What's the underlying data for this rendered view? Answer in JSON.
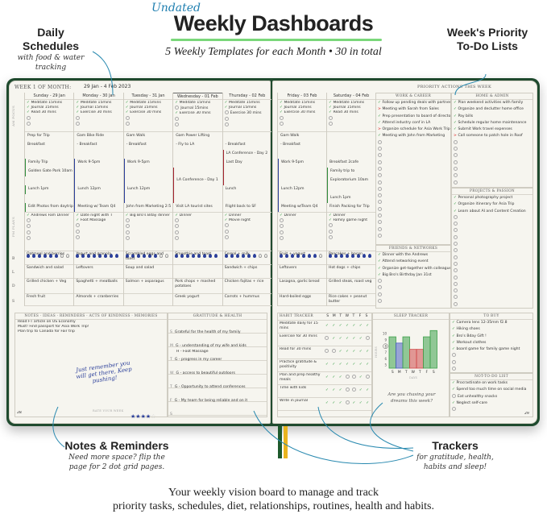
{
  "header": {
    "undated": "Undated",
    "title": "Weekly Dashboards",
    "subtitle": "5 Weekly Templates for each Month  •  30 in total"
  },
  "callouts": {
    "daily": {
      "title": "Daily Schedules",
      "sub": "with food & water tracking"
    },
    "priority": {
      "title": "Week's Priority To-Do Lists"
    },
    "notes": {
      "title": "Notes & Reminders",
      "sub": "Need more space? flip the page for 2 dot grid pages."
    },
    "trackers": {
      "title": "Trackers",
      "sub": "for gratitude, health, habits and sleep!"
    }
  },
  "tagline": [
    "Your weekly vision board to manage and track",
    "priority tasks, schedules, diet, relationships, routines, health and habits."
  ],
  "left_page": {
    "week_label": "WEEK 1 of MONTH:",
    "week_range": "29 Jan  -  4 Feb 2023",
    "page_number": "28",
    "row_labels": {
      "habits": "AM FOCUS",
      "pm": "PM PLANS",
      "meals": [
        "B",
        "L",
        "D",
        "S"
      ]
    },
    "notes_header": "NOTES · IDEAS · REMINDERS · ACTS OF KINDNESS · MEMORIES",
    "notes": [
      "Read FT article on US Economy",
      "Must! Find passport for Asia Work Trip!",
      "Plan trip to Canada for Fair trip"
    ],
    "motivation": "Just remember you will get there, Keep pushing!",
    "rate_label": "RATE YOUR WEEK",
    "rating": 4,
    "rating_max": 5,
    "gratitude_header": "GRATITUDE & HEALTH",
    "gratitude": [
      {
        "day": "S",
        "text": "Grateful for the health of my family"
      },
      {
        "day": "M",
        "text": "G - understanding of my wife and kids",
        "extra": "H - Foot Massage"
      },
      {
        "day": "T",
        "text": "G - progress in my career"
      },
      {
        "day": "W",
        "text": "G - access to beautiful outdoors"
      },
      {
        "day": "T",
        "text": "G - Opportunity to attend conferences"
      },
      {
        "day": "F",
        "text": "G - My team for being reliable and on it"
      },
      {
        "day": "S",
        "text": ""
      }
    ]
  },
  "days": [
    {
      "name": "Sunday  -  29 Jan",
      "habits": [
        [
          "Meditate 15mins",
          1
        ],
        [
          "Journal 15mins",
          1
        ],
        [
          "Read 30 mins",
          1
        ]
      ],
      "schedule": [
        [
          "Prep for Trip",
          ""
        ],
        [
          "Breakfast",
          ""
        ],
        [
          "",
          ""
        ],
        [
          "Family Trip",
          "#2e8b3a"
        ],
        [
          "Golden Gate Park 10am",
          "#2e8b3a"
        ],
        [
          "",
          ""
        ],
        [
          "Lunch 1pm",
          "#2e8b3a"
        ],
        [
          "",
          ""
        ],
        [
          "Edit Photos from daytrip",
          "#2e8b3a"
        ]
      ],
      "pm": [
        "Andrews Fam Dinner"
      ],
      "water": 6,
      "meals": [
        "Oatmeal and berries",
        "Sandwich and salad",
        "Grilled chicken + Veg",
        "Fresh fruit"
      ]
    },
    {
      "name": "Monday  -  30 Jan",
      "habits": [
        [
          "Meditate 15mins",
          1
        ],
        [
          "Journal 15mins",
          1
        ],
        [
          "Exercise 30 mins",
          1
        ]
      ],
      "schedule": [
        [
          "Gam Bike Ride",
          ""
        ],
        [
          "- Breakfast",
          ""
        ],
        [
          "",
          ""
        ],
        [
          "Work 9-5pm",
          "#2b3f9a"
        ],
        [
          "",
          "#2b3f9a"
        ],
        [
          "",
          "#2b3f9a"
        ],
        [
          "Lunch 12pm",
          "#2b3f9a"
        ],
        [
          "",
          "#2b3f9a"
        ],
        [
          "Meeting w/ Team Q4",
          "#2b3f9a"
        ]
      ],
      "pm": [
        "Date night with T",
        "Foot Massage"
      ],
      "water": 8,
      "meals": [
        "Yogurt and granola",
        "Leftovers",
        "Spaghetti + meatballs",
        "Almonds + cranberries"
      ]
    },
    {
      "name": "Tuesday  -  31 Jan",
      "habits": [
        [
          "Meditate 15mins",
          1
        ],
        [
          "Journal 15mins",
          1
        ],
        [
          "Exercise 30 mins",
          1
        ]
      ],
      "schedule": [
        [
          "Gam Walk",
          ""
        ],
        [
          "- Breakfast",
          ""
        ],
        [
          "",
          ""
        ],
        [
          "Work 9-5pm",
          "#2b3f9a"
        ],
        [
          "",
          "#2b3f9a"
        ],
        [
          "",
          "#2b3f9a"
        ],
        [
          "Lunch 12pm",
          "#2b3f9a"
        ],
        [
          "",
          "#2b3f9a"
        ],
        [
          "John from Marketing 2:5",
          ""
        ]
      ],
      "pm": [
        "Big Bro's Bday dinner"
      ],
      "water": 6,
      "meals": [
        "Scrambled eggs and toast",
        "Soup and salad",
        "Salmon + asparagus",
        ""
      ]
    },
    {
      "name": "Wednesday  -  01 Feb",
      "habits": [
        [
          "Meditate 15mins",
          1
        ],
        [
          "Journal 15mins",
          0
        ],
        [
          "Exercise 30 mins",
          1
        ]
      ],
      "schedule": [
        [
          "Gam Power Lifting",
          ""
        ],
        [
          "- Fly to LA",
          ""
        ],
        [
          "",
          ""
        ],
        [
          "",
          ""
        ],
        [
          "",
          "#a3232e"
        ],
        [
          "LA Conference - Day 1",
          "#a3232e"
        ],
        [
          "",
          "#a3232e"
        ],
        [
          "",
          "#a3232e"
        ],
        [
          "Visit LA tourist sites",
          ""
        ]
      ],
      "pm": [
        "Dinner"
      ],
      "water": 8,
      "meals": [
        "Smoothie and toast",
        "",
        "Pork chops + mashed potatoes",
        "Greek yogurt"
      ]
    },
    {
      "name": "Thursday  -  02 Feb",
      "habits": [
        [
          "Meditate 15mins",
          1
        ],
        [
          "Journal 15mins",
          1
        ],
        [
          "Exercise 30 mins",
          0
        ]
      ],
      "schedule": [
        [
          "",
          ""
        ],
        [
          "- Breakfast",
          ""
        ],
        [
          "LA Conference - Day 2",
          "#a3232e"
        ],
        [
          "Last Day",
          "#a3232e"
        ],
        [
          "",
          "#a3232e"
        ],
        [
          "",
          "#a3232e"
        ],
        [
          "Lunch",
          ""
        ],
        [
          "",
          ""
        ],
        [
          "Flight back to SF",
          ""
        ]
      ],
      "pm": [
        "Dinner",
        "Movie night"
      ],
      "water": 6,
      "meals": [
        "Cereal + milk",
        "Sandwich + chips",
        "Chicken fajitas + rice",
        "Carrots + hummus"
      ]
    },
    {
      "name": "Friday  -  03 Feb",
      "habits": [
        [
          "Meditate 15mins",
          1
        ],
        [
          "Journal 15mins",
          1
        ],
        [
          "Exercise 30 mins",
          1
        ]
      ],
      "schedule": [
        [
          "Gam Walk",
          ""
        ],
        [
          "- Breakfast",
          ""
        ],
        [
          "",
          ""
        ],
        [
          "Work 9-5pm",
          "#2b3f9a"
        ],
        [
          "",
          "#2b3f9a"
        ],
        [
          "",
          "#2b3f9a"
        ],
        [
          "Lunch 12pm",
          "#2b3f9a"
        ],
        [
          "",
          "#2b3f9a"
        ],
        [
          "Meeting w/Team Q4",
          "#2b3f9a"
        ]
      ],
      "pm": [
        "Dinner"
      ],
      "water": 7,
      "meals": [
        "Fruit + yogurt",
        "Leftovers",
        "Lasagna, garlic bread",
        "Hard-boiled eggs"
      ]
    },
    {
      "name": "Saturday  -  04 Feb",
      "habits": [
        [
          "Meditate 15mins",
          1
        ],
        [
          "Journal 15mins",
          1
        ],
        [
          "Read 30 mins",
          1
        ]
      ],
      "schedule": [
        [
          "",
          ""
        ],
        [
          "",
          ""
        ],
        [
          "",
          ""
        ],
        [
          "Breakfast 2cafe",
          ""
        ],
        [
          "Family trip to",
          "#2e8b3a"
        ],
        [
          "Exploratorium 10am",
          "#2e8b3a"
        ],
        [
          "",
          "#2e8b3a"
        ],
        [
          "Lunch 1pm",
          "#2e8b3a"
        ],
        [
          "Finish Packing for Trip",
          ""
        ]
      ],
      "pm": [
        "Dinner",
        "Family game night"
      ],
      "water": 8,
      "meals": [
        "Pancakes + bacon",
        "Hot dogs + chips",
        "Grilled steak, roast veg",
        "Rice cakes + peanut butter"
      ]
    }
  ],
  "right_page": {
    "priority_header": "PRIORITY ACTIONS THIS WEEK",
    "page_number": "29",
    "lists": {
      "work": {
        "title": "WORK & CAREER",
        "items": [
          [
            "Follow up pending deals with partners",
            "done"
          ],
          [
            "Meeting with Sarah from Sales",
            "moved"
          ],
          [
            "Prep presentation to board of directors",
            "done"
          ],
          [
            "Attend industry conf in LA",
            "done"
          ],
          [
            "Organize schedule for Asia Work Trip",
            "moved"
          ],
          [
            "Meeting with John from Marketing",
            "done"
          ]
        ]
      },
      "home": {
        "title": "HOME & ADMIN",
        "items": [
          [
            "Plan weekend activities with family",
            "done"
          ],
          [
            "Organize and declutter home office",
            "done"
          ],
          [
            "Pay bills",
            "done"
          ],
          [
            "Schedule regular home maintenance",
            "done"
          ],
          [
            "Submit Work travel expenses",
            "done"
          ],
          [
            "Call someone to patch hole in Roof",
            "moved"
          ]
        ]
      },
      "projects": {
        "title": "PROJECTS & PASSION",
        "items": [
          [
            "Personal photography project",
            "done"
          ],
          [
            "Organize itinerary for Asia Trip",
            "done"
          ],
          [
            "Learn about AI and Content Creation",
            "done"
          ]
        ]
      },
      "friends": {
        "title": "FRIENDS & NETWORKS",
        "items": [
          [
            "Dinner with the Andrews",
            "done"
          ],
          [
            "Attend networking event",
            "done"
          ],
          [
            "Organize get-together with colleagues",
            "done"
          ],
          [
            "Big Bro's Birthday Jan 31st",
            "done"
          ]
        ]
      },
      "tobuy": {
        "title": "TO BUY",
        "items": [
          [
            "Camera lens 12-35mm f2.8",
            "done"
          ],
          [
            "Hiking shoes",
            "done"
          ],
          [
            "Bro's Bday Gift !",
            "done"
          ],
          [
            "Workout clothes",
            "done"
          ],
          [
            "board game for family game night",
            "done"
          ]
        ]
      },
      "nottodo": {
        "title": "NOT-TO-DO LIST",
        "items": [
          [
            "Procrastinate on work tasks",
            "done"
          ],
          [
            "Spend too much time on social media",
            "done"
          ],
          [
            "Eat unhealthy snacks",
            "open"
          ],
          [
            "Neglect self-care",
            "done"
          ]
        ]
      }
    },
    "habit_tracker": {
      "title": "HABIT TRACKER",
      "days": [
        "S",
        "M",
        "T",
        "W",
        "T",
        "F",
        "S"
      ],
      "rows": [
        [
          "Meditate daily for 15 mins",
          [
            1,
            1,
            1,
            1,
            1,
            1,
            1
          ]
        ],
        [
          "Exercise for 30 mins",
          [
            0,
            1,
            1,
            1,
            1,
            1,
            0
          ]
        ],
        [
          "Read for 30 mins",
          [
            0,
            0,
            1,
            1,
            1,
            1,
            1
          ]
        ],
        [
          "Practice gratitude & positivity",
          [
            1,
            1,
            1,
            1,
            1,
            1,
            1
          ]
        ],
        [
          "Plan and prep healthy meals",
          [
            1,
            1,
            1,
            0,
            0,
            1,
            0
          ]
        ],
        [
          "Time with kids",
          [
            1,
            1,
            1,
            0,
            0,
            1,
            1
          ]
        ],
        [
          "Write in journal",
          [
            1,
            1,
            1,
            0,
            1,
            1,
            1
          ]
        ]
      ]
    },
    "sleep_tracker": {
      "title": "SLEEP TRACKER",
      "ylabel": "HOURS",
      "xlabel": "DAYS",
      "prompt": "Are you chasing your dreams this week?"
    }
  },
  "chart_data": {
    "type": "bar",
    "categories": [
      "S",
      "M",
      "T",
      "W",
      "T",
      "F",
      "S"
    ],
    "values": [
      9.5,
      8.5,
      9.5,
      7.5,
      7.5,
      9.5,
      10.5
    ],
    "colors": [
      "#3da04a",
      "#4a5fc0",
      "#3da04a",
      "#d04848",
      "#d04848",
      "#3da04a",
      "#3da04a"
    ],
    "yticks": [
      5,
      6,
      7,
      8,
      9,
      10
    ],
    "ylim": [
      4.5,
      11
    ],
    "xlabel": "DAYS",
    "ylabel": "HOURS",
    "highlight_tick": 8
  },
  "colors": {
    "book": "#1f4a2e",
    "check": "#2a9a3a",
    "moved": "#e03a3a",
    "water": "#2b3f9a",
    "accent": "#1f7fb0",
    "ribbon_green": "#1e5a2c",
    "ribbon_yellow": "#e9b41e"
  }
}
